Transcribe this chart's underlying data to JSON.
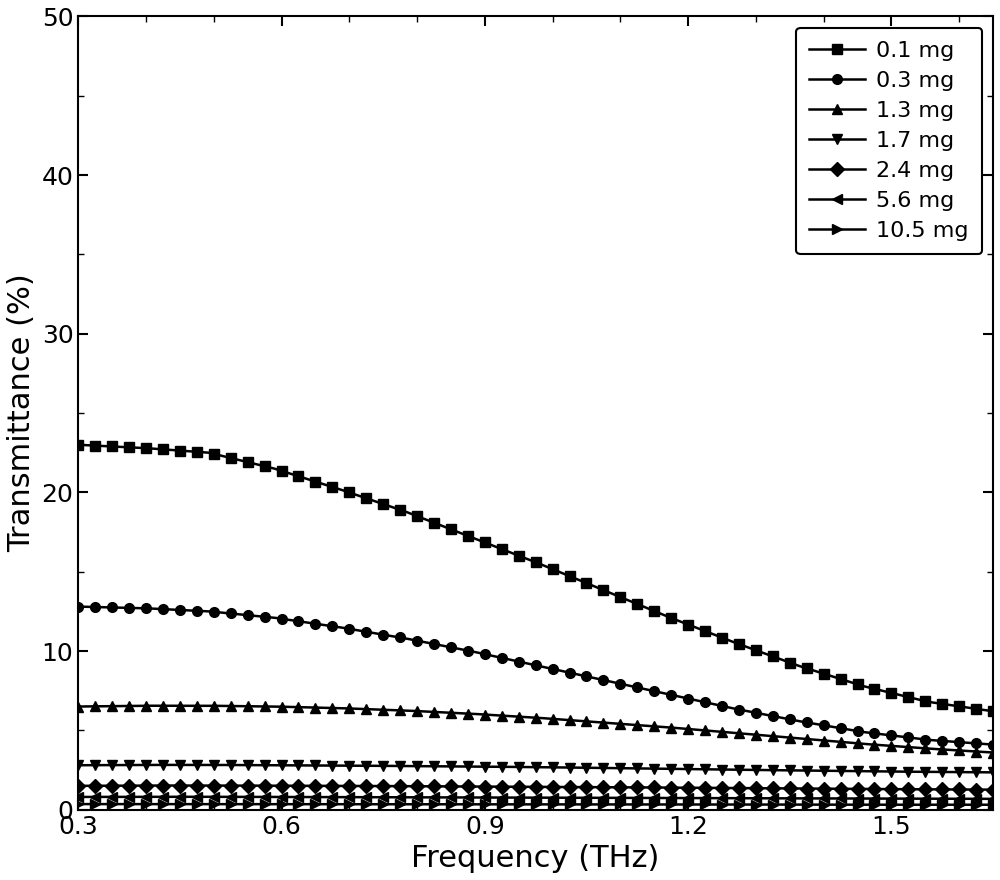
{
  "xlabel": "Frequency (THz)",
  "ylabel": "Transmittance (%)",
  "xlim": [
    0.3,
    1.65
  ],
  "ylim": [
    0,
    50
  ],
  "xticks": [
    0.3,
    0.6,
    0.9,
    1.2,
    1.5
  ],
  "yticks": [
    0,
    10,
    20,
    30,
    40,
    50
  ],
  "series": [
    {
      "label": "0.1 mg",
      "marker": "s",
      "y_vals": [
        23.0,
        22.8,
        22.5,
        21.5,
        20.2,
        18.8,
        17.2,
        15.6,
        13.9,
        12.2,
        10.6,
        9.1,
        7.8,
        6.8,
        6.2
      ],
      "marker_every": 1
    },
    {
      "label": "0.3 mg",
      "marker": "o",
      "y_vals": [
        12.8,
        12.7,
        12.5,
        12.1,
        11.5,
        10.8,
        10.0,
        9.1,
        8.2,
        7.3,
        6.4,
        5.6,
        4.9,
        4.4,
        4.1
      ],
      "marker_every": 1
    },
    {
      "label": "1.3 mg",
      "marker": "^",
      "y_vals": [
        6.5,
        6.55,
        6.55,
        6.5,
        6.4,
        6.25,
        6.05,
        5.8,
        5.5,
        5.2,
        4.85,
        4.5,
        4.15,
        3.85,
        3.6
      ],
      "marker_every": 1
    },
    {
      "label": "1.7 mg",
      "marker": "v",
      "y_vals": [
        2.8,
        2.82,
        2.82,
        2.8,
        2.78,
        2.75,
        2.72,
        2.68,
        2.63,
        2.58,
        2.52,
        2.47,
        2.42,
        2.38,
        2.35
      ],
      "marker_every": 1
    },
    {
      "label": "2.4 mg",
      "marker": "D",
      "y_vals": [
        1.5,
        1.52,
        1.52,
        1.51,
        1.5,
        1.48,
        1.46,
        1.44,
        1.42,
        1.39,
        1.36,
        1.33,
        1.3,
        1.28,
        1.26
      ],
      "marker_every": 1
    },
    {
      "label": "5.6 mg",
      "marker": "<",
      "y_vals": [
        0.8,
        0.81,
        0.81,
        0.8,
        0.79,
        0.78,
        0.77,
        0.76,
        0.75,
        0.74,
        0.72,
        0.71,
        0.7,
        0.69,
        0.68
      ],
      "marker_every": 1
    },
    {
      "label": "10.5 mg",
      "marker": ">",
      "y_vals": [
        0.35,
        0.35,
        0.35,
        0.35,
        0.34,
        0.34,
        0.34,
        0.33,
        0.33,
        0.33,
        0.32,
        0.32,
        0.31,
        0.31,
        0.31
      ],
      "marker_every": 1
    }
  ],
  "line_color": "#000000",
  "linewidth": 1.8,
  "markersize": 7,
  "legend_fontsize": 16,
  "axis_fontsize": 22,
  "tick_fontsize": 18,
  "background_color": "#ffffff"
}
